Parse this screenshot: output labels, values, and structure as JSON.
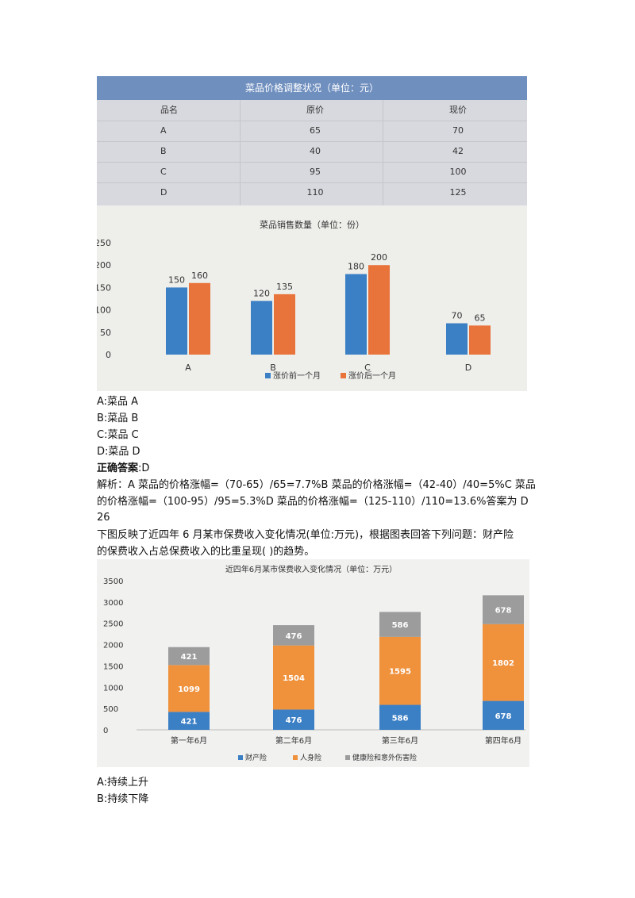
{
  "table": {
    "title": "菜品价格调整状况（单位：元）",
    "headers": [
      "品名",
      "原价",
      "现价"
    ],
    "rows": [
      [
        "A",
        "65",
        "70"
      ],
      [
        "B",
        "40",
        "42"
      ],
      [
        "C",
        "95",
        "100"
      ],
      [
        "D",
        "110",
        "125"
      ]
    ]
  },
  "chart_data": [
    {
      "type": "bar",
      "title": "菜品销售数量（单位：份）",
      "categories": [
        "A",
        "B",
        "C",
        "D"
      ],
      "series": [
        {
          "name": "涨价前一个月",
          "values": [
            150,
            120,
            180,
            70
          ],
          "color": "#3b7fc4"
        },
        {
          "name": "涨价后一个月",
          "values": [
            160,
            135,
            200,
            65
          ],
          "color": "#e8743b"
        }
      ],
      "ylim": [
        0,
        250
      ],
      "yticks": [
        0,
        50,
        100,
        150,
        200,
        250
      ],
      "legend": "bottom"
    },
    {
      "type": "bar",
      "stacked": true,
      "title": "近四年6月某市保费收入变化情况（单位：万元）",
      "categories": [
        "第一年6月",
        "第二年6月",
        "第三年6月",
        "第四年6月"
      ],
      "series": [
        {
          "name": "财产险",
          "values": [
            421,
            476,
            586,
            678
          ],
          "color": "#3b7fc4"
        },
        {
          "name": "人身险",
          "values": [
            1099,
            1504,
            1595,
            1802
          ],
          "color": "#f0913c"
        },
        {
          "name": "健康险和意外伤害险",
          "values": [
            421,
            476,
            586,
            678
          ],
          "color": "#9c9c9c"
        }
      ],
      "ylim": [
        0,
        3500
      ],
      "yticks": [
        0,
        500,
        1000,
        1500,
        2000,
        2500,
        3000,
        3500
      ],
      "legend": "bottom"
    }
  ],
  "q1": {
    "options": [
      "A:菜品 A",
      "B:菜品 B",
      "C:菜品 C",
      "D:菜品 D"
    ],
    "answer_label": "正确答案",
    "answer_value": ":D",
    "explanation": [
      "解析：A 菜品的价格涨幅=（70-65）/65=7.7%B 菜品的价格涨幅=（42-40）/40=5%C 菜品",
      "的价格涨幅=（100-95）/95=5.3%D 菜品的价格涨幅=（125-110）/110=13.6%答案为 D"
    ]
  },
  "q2": {
    "number": "26",
    "stem": [
      "下图反映了近四年 6 月某市保费收入变化情况(单位:万元)，根据图表回答下列问题：财产险",
      "的保费收入占总保费收入的比重呈现(    )的趋势。"
    ],
    "options": [
      "A:持续上升",
      "B:持续下降"
    ]
  }
}
